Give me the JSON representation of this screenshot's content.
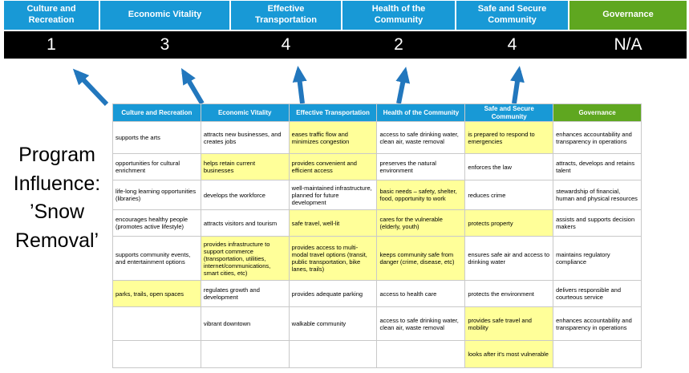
{
  "title": "Program\nInfluence:\n’Snow\nRemoval’",
  "colors": {
    "category_blue": "#1899D6",
    "category_green": "#5FA720",
    "score_bar_bg": "#000000",
    "score_text": "#FFFFFF",
    "highlight_yellow": "#FFFF99",
    "arrow_blue": "#2277BD"
  },
  "scoreboard": {
    "columns": [
      {
        "label": "Culture and Recreation",
        "score": "1",
        "color": "blue"
      },
      {
        "label": "Economic Vitality",
        "score": "3",
        "color": "blue"
      },
      {
        "label": "Effective Transportation",
        "score": "4",
        "color": "blue"
      },
      {
        "label": "Health of the Community",
        "score": "2",
        "color": "blue"
      },
      {
        "label": "Safe and Secure Community",
        "score": "4",
        "color": "blue"
      },
      {
        "label": "Governance",
        "score": "N/A",
        "color": "green"
      }
    ]
  },
  "table": {
    "headers": [
      {
        "label": "Culture and Recreation",
        "color": "blue"
      },
      {
        "label": "Economic Vitality",
        "color": "blue"
      },
      {
        "label": "Effective Transportation",
        "color": "blue"
      },
      {
        "label": "Health of the Community",
        "color": "blue"
      },
      {
        "label": "Safe and Secure Community",
        "color": "blue"
      },
      {
        "label": "Governance",
        "color": "green"
      }
    ],
    "rows": [
      [
        {
          "text": "supports the arts",
          "highlight": false
        },
        {
          "text": "attracts new businesses, and creates jobs",
          "highlight": false
        },
        {
          "text": "eases traffic flow and minimizes congestion",
          "highlight": true
        },
        {
          "text": "access to safe drinking water, clean air, waste removal",
          "highlight": false
        },
        {
          "text": "is prepared to respond to emergencies",
          "highlight": true
        },
        {
          "text": "enhances accountability and transparency in operations",
          "highlight": false
        }
      ],
      [
        {
          "text": "opportunities for cultural enrichment",
          "highlight": false
        },
        {
          "text": "helps retain current businesses",
          "highlight": true
        },
        {
          "text": "provides convenient and efficient access",
          "highlight": true
        },
        {
          "text": "preserves the natural environment",
          "highlight": false
        },
        {
          "text": "enforces the law",
          "highlight": false
        },
        {
          "text": "attracts, develops and retains talent",
          "highlight": false
        }
      ],
      [
        {
          "text": "life-long learning opportunities (libraries)",
          "highlight": false
        },
        {
          "text": "develops the workforce",
          "highlight": false
        },
        {
          "text": "well-maintained infrastructure, planned for future development",
          "highlight": false
        },
        {
          "text": "basic needs – safety, shelter, food, opportunity to work",
          "highlight": true
        },
        {
          "text": "reduces crime",
          "highlight": false
        },
        {
          "text": "stewardship of financial, human and physical resources",
          "highlight": false
        }
      ],
      [
        {
          "text": "encourages healthy people (promotes active lifestyle)",
          "highlight": false
        },
        {
          "text": "attracts visitors and tourism",
          "highlight": false
        },
        {
          "text": "safe travel, well-lit",
          "highlight": true
        },
        {
          "text": "cares for the vulnerable (elderly, youth)",
          "highlight": true
        },
        {
          "text": "protects property",
          "highlight": true
        },
        {
          "text": "assists and supports decision makers",
          "highlight": false
        }
      ],
      [
        {
          "text": "supports community events, and entertainment options",
          "highlight": false
        },
        {
          "text": "provides infrastructure to support commerce (transportation, utilities, internet/communications, smart cities, etc)",
          "highlight": true
        },
        {
          "text": "provides access to multi-modal travel options (transit, public transportation, bike lanes, trails)",
          "highlight": true
        },
        {
          "text": "keeps community safe from danger (crime, disease, etc)",
          "highlight": true
        },
        {
          "text": "ensures safe air and access to drinking water",
          "highlight": false
        },
        {
          "text": "maintains regulatory compliance",
          "highlight": false
        }
      ],
      [
        {
          "text": "parks, trails, open spaces",
          "highlight": true
        },
        {
          "text": "regulates growth and development",
          "highlight": false
        },
        {
          "text": "provides adequate parking",
          "highlight": false
        },
        {
          "text": "access to health care",
          "highlight": false
        },
        {
          "text": "protects the environment",
          "highlight": false
        },
        {
          "text": "delivers responsible and courteous service",
          "highlight": false
        }
      ],
      [
        {
          "text": "",
          "highlight": false
        },
        {
          "text": "vibrant downtown",
          "highlight": false
        },
        {
          "text": "walkable community",
          "highlight": false
        },
        {
          "text": "access to safe drinking water, clean air, waste removal",
          "highlight": false
        },
        {
          "text": "provides safe travel and mobility",
          "highlight": true
        },
        {
          "text": "enhances accountability and transparency in operations",
          "highlight": false
        }
      ],
      [
        {
          "text": "",
          "highlight": false
        },
        {
          "text": "",
          "highlight": false
        },
        {
          "text": "",
          "highlight": false
        },
        {
          "text": "",
          "highlight": false
        },
        {
          "text": "looks after it's most vulnerable",
          "highlight": true
        },
        {
          "text": "",
          "highlight": false
        }
      ]
    ]
  }
}
